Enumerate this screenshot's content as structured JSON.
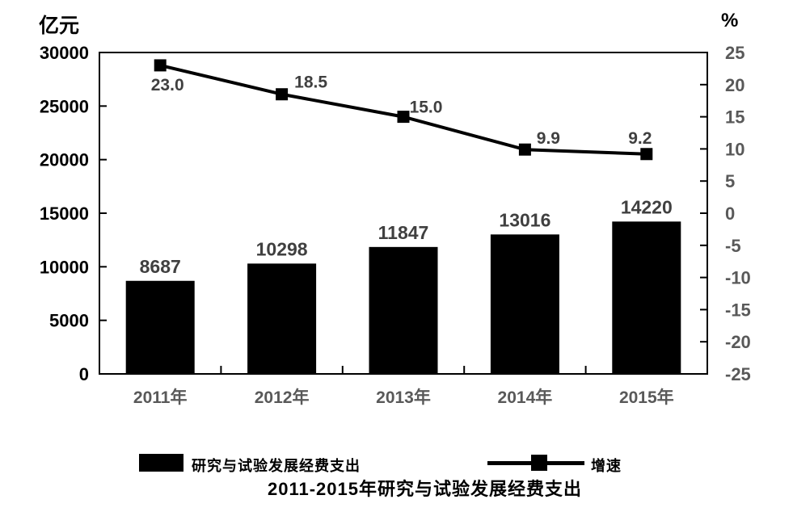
{
  "units": {
    "left": "亿元",
    "right": "%"
  },
  "chart_data": {
    "type": "bar",
    "combo": "bar+line",
    "title": "2011-2015年研究与试验发展经费支出",
    "categories": [
      "2011年",
      "2012年",
      "2013年",
      "2014年",
      "2015年"
    ],
    "series": [
      {
        "name": "研究与试验发展经费支出",
        "type": "bar",
        "axis": "left",
        "values": [
          8687,
          10298,
          11847,
          13016,
          14220
        ],
        "labels": [
          "8687",
          "10298",
          "11847",
          "13016",
          "14220"
        ],
        "color": "#000000"
      },
      {
        "name": "增速",
        "type": "line",
        "axis": "right",
        "values": [
          23.0,
          18.5,
          15.0,
          9.9,
          9.2
        ],
        "labels": [
          "23.0",
          "18.5",
          "15.0",
          "9.9",
          "9.2"
        ],
        "color": "#000000",
        "marker": "square"
      }
    ],
    "left_axis": {
      "unit": "亿元",
      "min": 0,
      "max": 30000,
      "step": 5000,
      "tick_labels": [
        "0",
        "5000",
        "10000",
        "15000",
        "20000",
        "25000",
        "30000"
      ]
    },
    "right_axis": {
      "unit": "%",
      "min": -25,
      "max": 25,
      "step": 5,
      "tick_labels": [
        "-25",
        "-20",
        "-15",
        "-10",
        "-5",
        "0",
        "5",
        "10",
        "15",
        "20",
        "25"
      ]
    },
    "legend_position": "bottom",
    "grid": false
  },
  "colors": {
    "bar": "#000000",
    "line": "#000000",
    "plot_border": "#000000",
    "axis_label_left": "#000000",
    "axis_label_right": "#595959",
    "data_label": "#404040",
    "category_label": "#595959"
  }
}
